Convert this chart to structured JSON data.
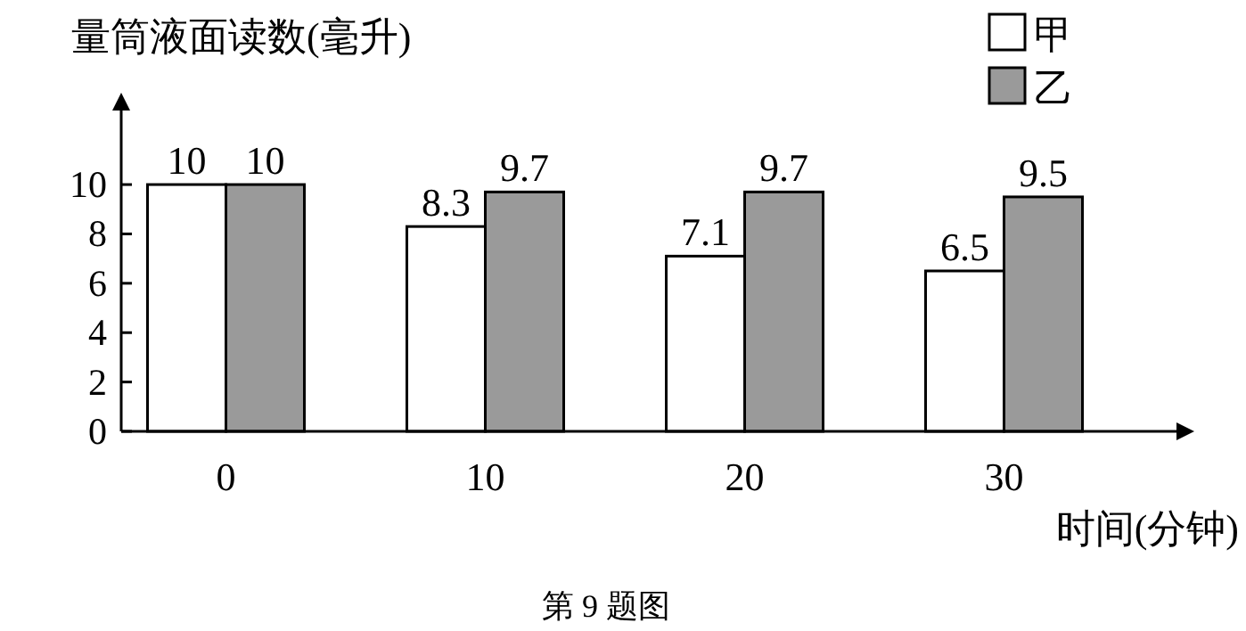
{
  "chart_data": {
    "type": "bar",
    "ylabel": "量筒液面读数(毫升)",
    "xlabel": "时间(分钟)",
    "categories": [
      "0",
      "10",
      "20",
      "30"
    ],
    "series": [
      {
        "name": "甲",
        "color": "#ffffff",
        "values": [
          10,
          8.3,
          7.1,
          6.5
        ]
      },
      {
        "name": "乙",
        "color": "#9a9a9a",
        "values": [
          10,
          9.7,
          9.7,
          9.5
        ]
      }
    ],
    "ylim": [
      0,
      13
    ],
    "yticks": [
      0,
      2,
      4,
      6,
      8,
      10
    ],
    "data_labels": true,
    "legend": "top right",
    "grid": false,
    "annotations": [
      "第 9 题图"
    ]
  }
}
